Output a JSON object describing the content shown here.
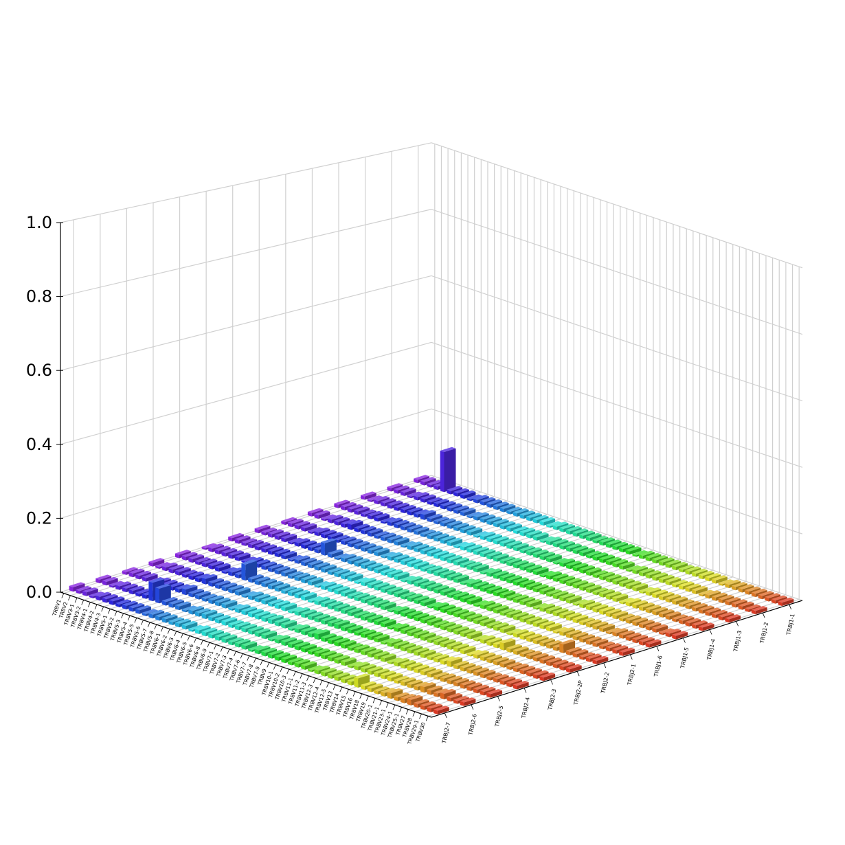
{
  "chart_data": {
    "type": "bar3d",
    "x_categories": [
      "TRBV1",
      "TRBV2",
      "TRBV3-1",
      "TRBV3-2",
      "TRBV4-1",
      "TRBV4-2",
      "TRBV4-3",
      "TRBV5-1",
      "TRBV5-2",
      "TRBV5-3",
      "TRBV5-4",
      "TRBV5-5",
      "TRBV5-6",
      "TRBV5-7",
      "TRBV5-8",
      "TRBV6-1",
      "TRBV6-2",
      "TRBV6-3",
      "TRBV6-4",
      "TRBV6-5",
      "TRBV6-6",
      "TRBV6-8",
      "TRBV6-9",
      "TRBV7-1",
      "TRBV7-2",
      "TRBV7-3",
      "TRBV7-4",
      "TRBV7-6",
      "TRBV7-7",
      "TRBV7-8",
      "TRBV7-9",
      "TRBV9",
      "TRBV10-1",
      "TRBV10-2",
      "TRBV10-3",
      "TRBV11-1",
      "TRBV11-2",
      "TRBV11-3",
      "TRBV12-3",
      "TRBV12-4",
      "TRBV12-5",
      "TRBV13",
      "TRBV14",
      "TRBV15",
      "TRBV16",
      "TRBV18",
      "TRBV19",
      "TRBV20-1",
      "TRBV21-1",
      "TRBV23-1",
      "TRBV24-1",
      "TRBV25-1",
      "TRBV27",
      "TRBV28",
      "TRBV29-1",
      "TRBV30"
    ],
    "y_categories": [
      "TRBJ2-7",
      "TRBJ2-6",
      "TRBJ2-5",
      "TRBJ2-4",
      "TRBJ2-3",
      "TRBJ2-2P",
      "TRBJ2-2",
      "TRBJ2-1",
      "TRBJ1-6",
      "TRBJ1-5",
      "TRBJ1-4",
      "TRBJ1-3",
      "TRBJ1-2",
      "TRBJ1-1"
    ],
    "values": [
      [
        0.012,
        0.008,
        0.01,
        0.005,
        0.01,
        0.01,
        0.01,
        0.008,
        0.01,
        0.01,
        0.01,
        0.006,
        0.01,
        0.01,
        0.01,
        0.008,
        0.01,
        0.01,
        0.005,
        0.01,
        0.01,
        0.01,
        0.01,
        0.01,
        0.008,
        0.01,
        0.01,
        0.005,
        0.01,
        0.01,
        0.01,
        0.01,
        0.01,
        0.008,
        0.01,
        0.01,
        0.005,
        0.01,
        0.01,
        0.01,
        0.01,
        0.01,
        0.01,
        0.025,
        0.01,
        0.01,
        0.008,
        0.01,
        0.015,
        0.01,
        0.012,
        0.015,
        0.01,
        0.01,
        0.01,
        0.01
      ],
      [
        0.01,
        0.01,
        0.005,
        0.01,
        0.01,
        0.01,
        0.008,
        0.01,
        0.05,
        0.04,
        0.01,
        0.01,
        0.01,
        0.005,
        0.01,
        0.01,
        0.012,
        0.01,
        0.01,
        0.01,
        0.008,
        0.01,
        0.01,
        0.01,
        0.01,
        0.01,
        0.005,
        0.01,
        0.01,
        0.01,
        0.01,
        0.01,
        0.008,
        0.01,
        0.01,
        0.01,
        0.01,
        0.01,
        0.005,
        0.01,
        0.01,
        0.01,
        0.01,
        0.01,
        0.01,
        0.008,
        0.01,
        0.01,
        0.01,
        0.015,
        0.012,
        0.01,
        0.015,
        0.01,
        0.008,
        0.01
      ],
      [
        0.008,
        0.01,
        0.01,
        0.01,
        0.005,
        0.01,
        0.01,
        0.01,
        0.01,
        0.015,
        0.01,
        0.01,
        0.008,
        0.01,
        0.01,
        0.01,
        0.005,
        0.01,
        0.01,
        0.01,
        0.01,
        0.01,
        0.012,
        0.01,
        0.01,
        0.005,
        0.01,
        0.01,
        0.01,
        0.015,
        0.01,
        0.01,
        0.01,
        0.01,
        0.008,
        0.01,
        0.01,
        0.01,
        0.01,
        0.01,
        0.005,
        0.01,
        0.01,
        0.01,
        0.01,
        0.01,
        0.01,
        0.008,
        0.01,
        0.01,
        0.01,
        0.01,
        0.01,
        0.01,
        0.01,
        0.01
      ],
      [
        0.01,
        0.005,
        0.01,
        0.01,
        0.01,
        0.008,
        0.01,
        0.01,
        0.015,
        0.01,
        0.01,
        0.01,
        0.01,
        0.01,
        0.005,
        0.01,
        0.01,
        0.01,
        0.008,
        0.01,
        0.01,
        0.005,
        0.01,
        0.01,
        0.01,
        0.01,
        0.01,
        0.01,
        0.012,
        0.01,
        0.01,
        0.008,
        0.01,
        0.01,
        0.01,
        0.005,
        0.01,
        0.01,
        0.01,
        0.01,
        0.01,
        0.01,
        0.008,
        0.01,
        0.01,
        0.015,
        0.01,
        0.01,
        0.01,
        0.01,
        0.01,
        0.008,
        0.01,
        0.01,
        0.01,
        0.01
      ],
      [
        0.01,
        0.01,
        0.01,
        0.008,
        0.01,
        0.01,
        0.01,
        0.005,
        0.01,
        0.01,
        0.045,
        0.01,
        0.01,
        0.01,
        0.01,
        0.01,
        0.008,
        0.01,
        0.01,
        0.01,
        0.005,
        0.01,
        0.01,
        0.01,
        0.01,
        0.01,
        0.01,
        0.008,
        0.01,
        0.01,
        0.01,
        0.01,
        0.005,
        0.01,
        0.01,
        0.01,
        0.01,
        0.01,
        0.008,
        0.01,
        0.01,
        0.01,
        0.01,
        0.01,
        0.005,
        0.01,
        0.01,
        0.01,
        0.01,
        0.01,
        0.008,
        0.01,
        0.01,
        0.01,
        0.01,
        0.01
      ],
      [
        0.005,
        0.01,
        0.01,
        0.01,
        0.01,
        0.01,
        0.005,
        0.01,
        0.01,
        0.01,
        0.01,
        0.01,
        0.01,
        0.008,
        0.01,
        0.01,
        0.01,
        0.005,
        0.01,
        0.01,
        0.01,
        0.01,
        0.008,
        0.01,
        0.01,
        0.01,
        0.01,
        0.01,
        0.005,
        0.01,
        0.01,
        0.01,
        0.01,
        0.01,
        0.01,
        0.008,
        0.01,
        0.01,
        0.01,
        0.01,
        0.01,
        0.005,
        0.01,
        0.01,
        0.01,
        0.02,
        0.01,
        0.01,
        0.008,
        0.01,
        0.01,
        0.01,
        0.01,
        0.01,
        0.01,
        0.01
      ],
      [
        0.01,
        0.01,
        0.008,
        0.01,
        0.01,
        0.01,
        0.01,
        0.01,
        0.01,
        0.005,
        0.01,
        0.01,
        0.01,
        0.01,
        0.01,
        0.008,
        0.01,
        0.01,
        0.01,
        0.005,
        0.01,
        0.01,
        0.01,
        0.01,
        0.01,
        0.01,
        0.008,
        0.01,
        0.01,
        0.01,
        0.005,
        0.01,
        0.01,
        0.01,
        0.01,
        0.01,
        0.01,
        0.01,
        0.01,
        0.008,
        0.01,
        0.01,
        0.005,
        0.01,
        0.01,
        0.01,
        0.01,
        0.01,
        0.01,
        0.01,
        0.025,
        0.01,
        0.01,
        0.008,
        0.01,
        0.01
      ],
      [
        0.01,
        0.008,
        0.01,
        0.01,
        0.01,
        0.005,
        0.01,
        0.01,
        0.01,
        0.01,
        0.035,
        0.01,
        0.005,
        0.01,
        0.01,
        0.01,
        0.01,
        0.01,
        0.01,
        0.008,
        0.01,
        0.01,
        0.005,
        0.01,
        0.01,
        0.01,
        0.01,
        0.01,
        0.01,
        0.008,
        0.01,
        0.01,
        0.01,
        0.005,
        0.01,
        0.01,
        0.01,
        0.008,
        0.01,
        0.01,
        0.01,
        0.01,
        0.01,
        0.01,
        0.01,
        0.005,
        0.01,
        0.01,
        0.01,
        0.01,
        0.01,
        0.01,
        0.008,
        0.01,
        0.01,
        0.01
      ],
      [
        0.008,
        0.01,
        0.01,
        0.01,
        0.005,
        0.01,
        0.01,
        0.01,
        0.008,
        0.01,
        0.01,
        0.01,
        0.01,
        0.01,
        0.01,
        0.005,
        0.01,
        0.01,
        0.01,
        0.01,
        0.01,
        0.008,
        0.01,
        0.01,
        0.01,
        0.01,
        0.01,
        0.005,
        0.01,
        0.01,
        0.01,
        0.01,
        0.01,
        0.01,
        0.008,
        0.01,
        0.01,
        0.01,
        0.005,
        0.01,
        0.01,
        0.01,
        0.01,
        0.01,
        0.01,
        0.008,
        0.01,
        0.01,
        0.01,
        0.005,
        0.01,
        0.01,
        0.01,
        0.01,
        0.01,
        0.01
      ],
      [
        0.01,
        0.01,
        0.005,
        0.01,
        0.01,
        0.01,
        0.015,
        0.01,
        0.01,
        0.01,
        0.008,
        0.01,
        0.01,
        0.01,
        0.005,
        0.01,
        0.01,
        0.01,
        0.01,
        0.01,
        0.01,
        0.01,
        0.01,
        0.008,
        0.01,
        0.01,
        0.005,
        0.01,
        0.01,
        0.01,
        0.01,
        0.01,
        0.01,
        0.01,
        0.01,
        0.01,
        0.008,
        0.01,
        0.01,
        0.01,
        0.005,
        0.01,
        0.01,
        0.01,
        0.01,
        0.01,
        0.01,
        0.008,
        0.01,
        0.01,
        0.01,
        0.01,
        0.01,
        0.005,
        0.01,
        0.01
      ],
      [
        0.01,
        0.01,
        0.01,
        0.01,
        0.008,
        0.01,
        0.01,
        0.005,
        0.01,
        0.01,
        0.01,
        0.01,
        0.01,
        0.008,
        0.01,
        0.01,
        0.01,
        0.01,
        0.005,
        0.01,
        0.01,
        0.01,
        0.01,
        0.01,
        0.01,
        0.008,
        0.01,
        0.01,
        0.01,
        0.01,
        0.01,
        0.005,
        0.01,
        0.01,
        0.01,
        0.01,
        0.01,
        0.01,
        0.01,
        0.008,
        0.01,
        0.01,
        0.01,
        0.005,
        0.01,
        0.01,
        0.01,
        0.01,
        0.01,
        0.01,
        0.01,
        0.008,
        0.01,
        0.01,
        0.01,
        0.01
      ],
      [
        0.01,
        0.005,
        0.01,
        0.01,
        0.01,
        0.01,
        0.01,
        0.01,
        0.01,
        0.015,
        0.01,
        0.008,
        0.01,
        0.01,
        0.01,
        0.01,
        0.01,
        0.005,
        0.01,
        0.01,
        0.01,
        0.01,
        0.01,
        0.01,
        0.008,
        0.01,
        0.01,
        0.01,
        0.01,
        0.005,
        0.01,
        0.01,
        0.01,
        0.01,
        0.01,
        0.008,
        0.01,
        0.01,
        0.01,
        0.01,
        0.01,
        0.01,
        0.005,
        0.01,
        0.01,
        0.01,
        0.01,
        0.01,
        0.008,
        0.01,
        0.01,
        0.01,
        0.01,
        0.01,
        0.01,
        0.01
      ],
      [
        0.01,
        0.01,
        0.01,
        0.005,
        0.01,
        0.01,
        0.008,
        0.01,
        0.01,
        0.01,
        0.01,
        0.01,
        0.005,
        0.01,
        0.01,
        0.01,
        0.01,
        0.01,
        0.01,
        0.008,
        0.01,
        0.01,
        0.01,
        0.005,
        0.01,
        0.01,
        0.01,
        0.01,
        0.01,
        0.01,
        0.008,
        0.01,
        0.01,
        0.01,
        0.01,
        0.01,
        0.005,
        0.01,
        0.01,
        0.01,
        0.01,
        0.01,
        0.01,
        0.008,
        0.01,
        0.01,
        0.01,
        0.005,
        0.01,
        0.01,
        0.01,
        0.01,
        0.01,
        0.01,
        0.008,
        0.01
      ],
      [
        0.01,
        0.01,
        0.008,
        0.01,
        0.12,
        0.01,
        0.01,
        0.01,
        0.005,
        0.01,
        0.01,
        0.01,
        0.01,
        0.01,
        0.008,
        0.01,
        0.01,
        0.01,
        0.01,
        0.01,
        0.005,
        0.01,
        0.01,
        0.01,
        0.01,
        0.01,
        0.01,
        0.008,
        0.01,
        0.01,
        0.01,
        0.01,
        0.01,
        0.005,
        0.01,
        0.01,
        0.01,
        0.01,
        0.01,
        0.01,
        0.008,
        0.01,
        0.01,
        0.01,
        0.01,
        0.01,
        0.005,
        0.01,
        0.01,
        0.01,
        0.01,
        0.01,
        0.01,
        0.01,
        0.01,
        0.01
      ]
    ],
    "colormap": "rainbow",
    "zlim": [
      0,
      1
    ],
    "zticks": [
      {
        "value": 0,
        "label": "0.0"
      },
      {
        "value": 0.2,
        "label": "0.2"
      },
      {
        "value": 0.4,
        "label": "0.4"
      },
      {
        "value": 0.6,
        "label": "0.6"
      },
      {
        "value": 0.8,
        "label": "0.8"
      },
      {
        "value": 1,
        "label": "1.0"
      }
    ],
    "grid": true
  }
}
